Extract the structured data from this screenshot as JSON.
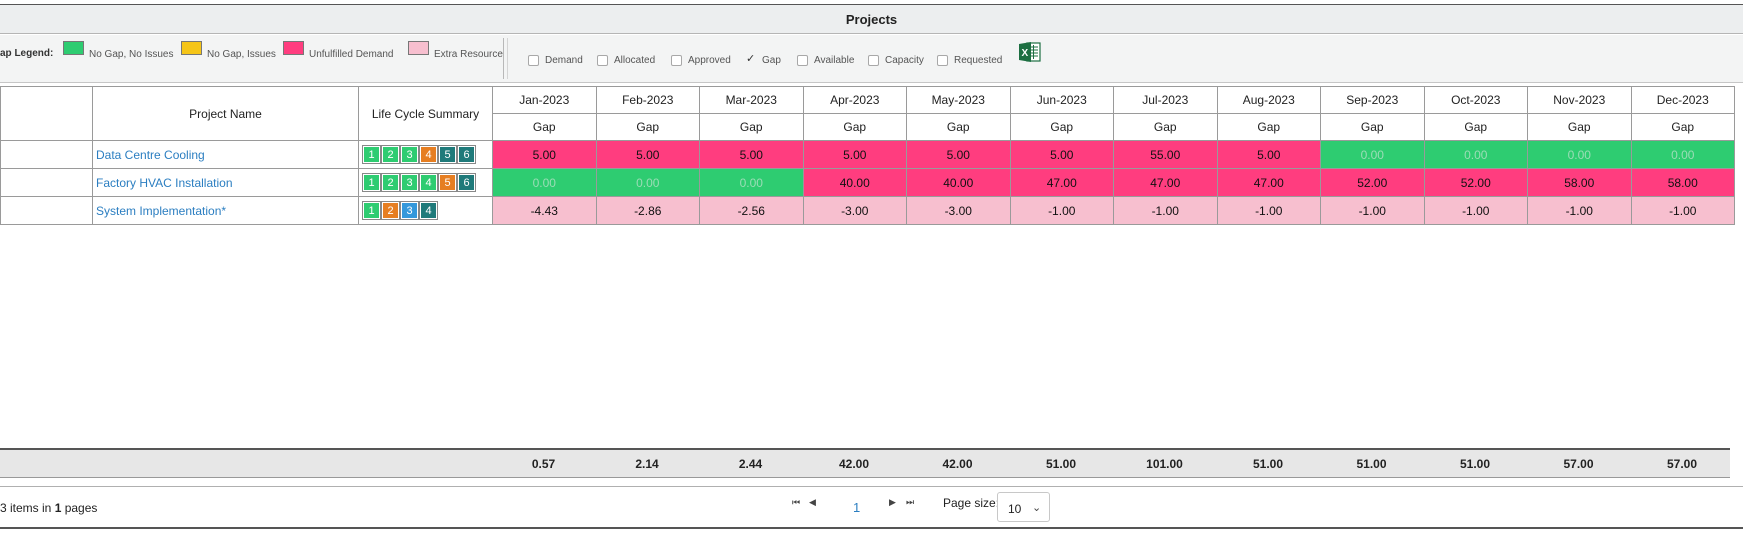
{
  "title": "Projects",
  "legend": {
    "label": "ap Legend:",
    "items": [
      {
        "text": "No Gap, No Issues",
        "color": "#2ecc71"
      },
      {
        "text": "No Gap, Issues",
        "color": "#f5c518"
      },
      {
        "text": "Unfulfilled Demand",
        "color": "#ff3d7f"
      },
      {
        "text": "Extra Resource",
        "color": "#f7bfcf"
      }
    ]
  },
  "filters": [
    {
      "label": "Demand",
      "checked": false
    },
    {
      "label": "Allocated",
      "checked": false
    },
    {
      "label": "Approved",
      "checked": false
    },
    {
      "label": "Gap",
      "checked": true
    },
    {
      "label": "Available",
      "checked": false
    },
    {
      "label": "Capacity",
      "checked": false
    },
    {
      "label": "Requested",
      "checked": false
    }
  ],
  "excel_icon": "excel-export-icon",
  "grid": {
    "col_project": "Project Name",
    "col_lifecycle": "Life Cycle Summary",
    "months": [
      "Jan-2023",
      "Feb-2023",
      "Mar-2023",
      "Apr-2023",
      "May-2023",
      "Jun-2023",
      "Jul-2023",
      "Aug-2023",
      "Sep-2023",
      "Oct-2023",
      "Nov-2023",
      "Dec-2023"
    ],
    "sub_label": "Gap",
    "rows": [
      {
        "name": "Data Centre Cooling",
        "stages": [
          {
            "n": "1",
            "color": "#2ecc71"
          },
          {
            "n": "2",
            "color": "#2ecc71"
          },
          {
            "n": "3",
            "color": "#2ecc71"
          },
          {
            "n": "4",
            "color": "#e67e22"
          },
          {
            "n": "5",
            "color": "#1f7a7a"
          },
          {
            "n": "6",
            "color": "#1f7a7a"
          }
        ],
        "values": [
          "5.00",
          "5.00",
          "5.00",
          "5.00",
          "5.00",
          "5.00",
          "55.00",
          "5.00",
          "0.00",
          "0.00",
          "0.00",
          "0.00"
        ],
        "status": [
          "red",
          "red",
          "red",
          "red",
          "red",
          "red",
          "red",
          "red",
          "green",
          "green",
          "green",
          "green"
        ]
      },
      {
        "name": "Factory HVAC Installation",
        "stages": [
          {
            "n": "1",
            "color": "#2ecc71"
          },
          {
            "n": "2",
            "color": "#2ecc71"
          },
          {
            "n": "3",
            "color": "#2ecc71"
          },
          {
            "n": "4",
            "color": "#2ecc71"
          },
          {
            "n": "5",
            "color": "#e67e22"
          },
          {
            "n": "6",
            "color": "#1f7a7a"
          }
        ],
        "values": [
          "0.00",
          "0.00",
          "0.00",
          "40.00",
          "40.00",
          "47.00",
          "47.00",
          "47.00",
          "52.00",
          "52.00",
          "58.00",
          "58.00"
        ],
        "status": [
          "green",
          "green",
          "green",
          "red",
          "red",
          "red",
          "red",
          "red",
          "red",
          "red",
          "red",
          "red"
        ]
      },
      {
        "name": "System Implementation*",
        "stages": [
          {
            "n": "1",
            "color": "#2ecc71"
          },
          {
            "n": "2",
            "color": "#e67e22"
          },
          {
            "n": "3",
            "color": "#3498db"
          },
          {
            "n": "4",
            "color": "#1f7a7a"
          }
        ],
        "values": [
          "-4.43",
          "-2.86",
          "-2.56",
          "-3.00",
          "-3.00",
          "-1.00",
          "-1.00",
          "-1.00",
          "-1.00",
          "-1.00",
          "-1.00",
          "-1.00"
        ],
        "status": [
          "pink",
          "pink",
          "pink",
          "pink",
          "pink",
          "pink",
          "pink",
          "pink",
          "pink",
          "pink",
          "pink",
          "pink"
        ]
      }
    ],
    "totals": [
      "0.57",
      "2.14",
      "2.44",
      "42.00",
      "42.00",
      "51.00",
      "101.00",
      "51.00",
      "51.00",
      "51.00",
      "57.00",
      "57.00"
    ]
  },
  "pager": {
    "info_prefix": "3 items in ",
    "info_pages": "1",
    "info_suffix": " pages",
    "page": "1",
    "page_size_label": "Page size:",
    "page_size": "10",
    "first_icon": "first-page-icon",
    "prev_icon": "prev-page-icon",
    "next_icon": "next-page-icon",
    "last_icon": "last-page-icon"
  }
}
